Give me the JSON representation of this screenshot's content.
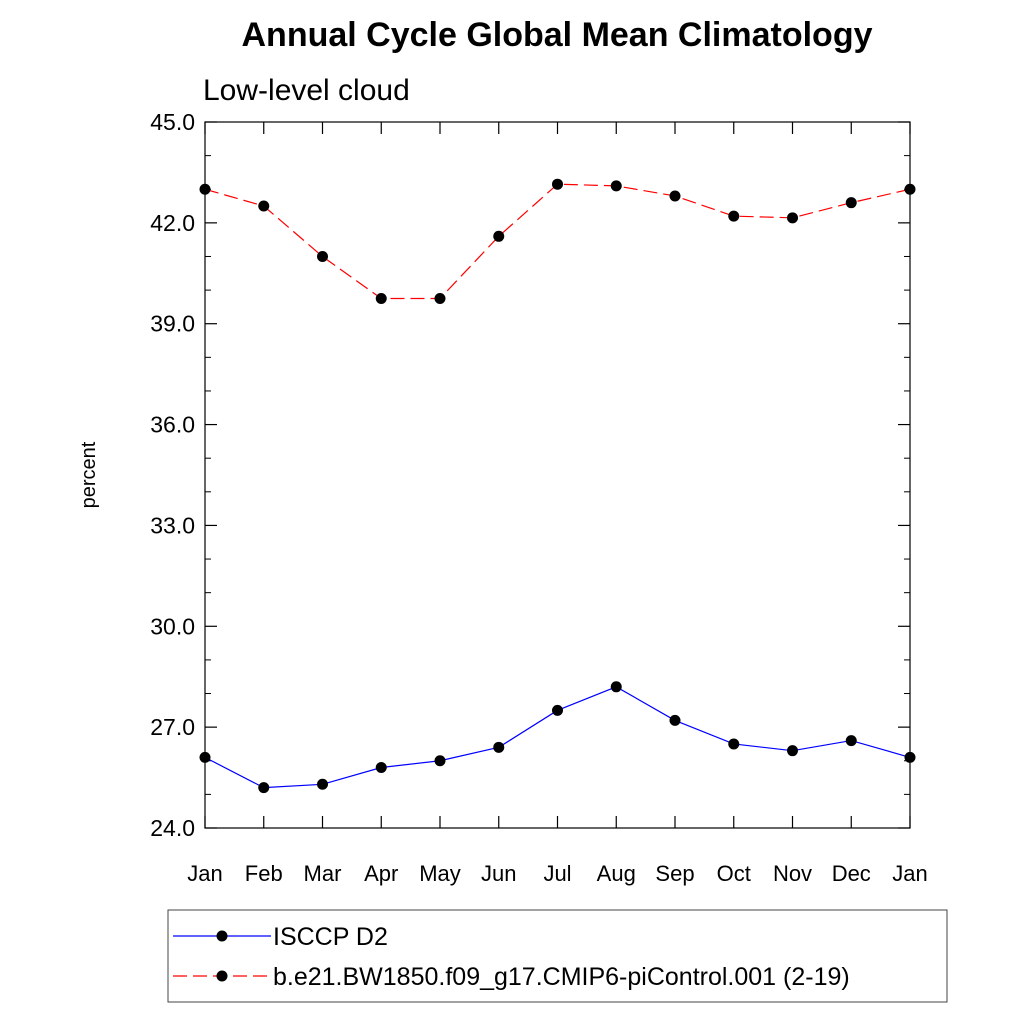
{
  "chart_data": {
    "type": "line",
    "title": "Annual Cycle Global Mean Climatology",
    "subtitle": "Low-level cloud",
    "ylabel": "percent",
    "xlabel": "",
    "ylim": [
      24.0,
      45.0
    ],
    "yticks": [
      "24.0",
      "27.0",
      "30.0",
      "33.0",
      "36.0",
      "39.0",
      "42.0",
      "45.0"
    ],
    "categories": [
      "Jan",
      "Feb",
      "Mar",
      "Apr",
      "May",
      "Jun",
      "Jul",
      "Aug",
      "Sep",
      "Oct",
      "Nov",
      "Dec",
      "Jan"
    ],
    "grid": false,
    "legend_position": "bottom",
    "series": [
      {
        "name": "ISCCP D2",
        "color": "#0000ff",
        "dash": "solid",
        "marker": "circle",
        "values": [
          26.1,
          25.2,
          25.3,
          25.8,
          26.0,
          26.4,
          27.5,
          28.2,
          27.2,
          26.5,
          26.3,
          26.6,
          26.1
        ]
      },
      {
        "name": "b.e21.BW1850.f09_g17.CMIP6-piControl.001 (2-19)",
        "color": "#ff0000",
        "dash": "dashed",
        "marker": "circle",
        "values": [
          43.0,
          42.5,
          41.0,
          39.75,
          39.75,
          41.6,
          43.15,
          43.1,
          42.8,
          42.2,
          42.15,
          42.6,
          43.0
        ]
      }
    ]
  }
}
